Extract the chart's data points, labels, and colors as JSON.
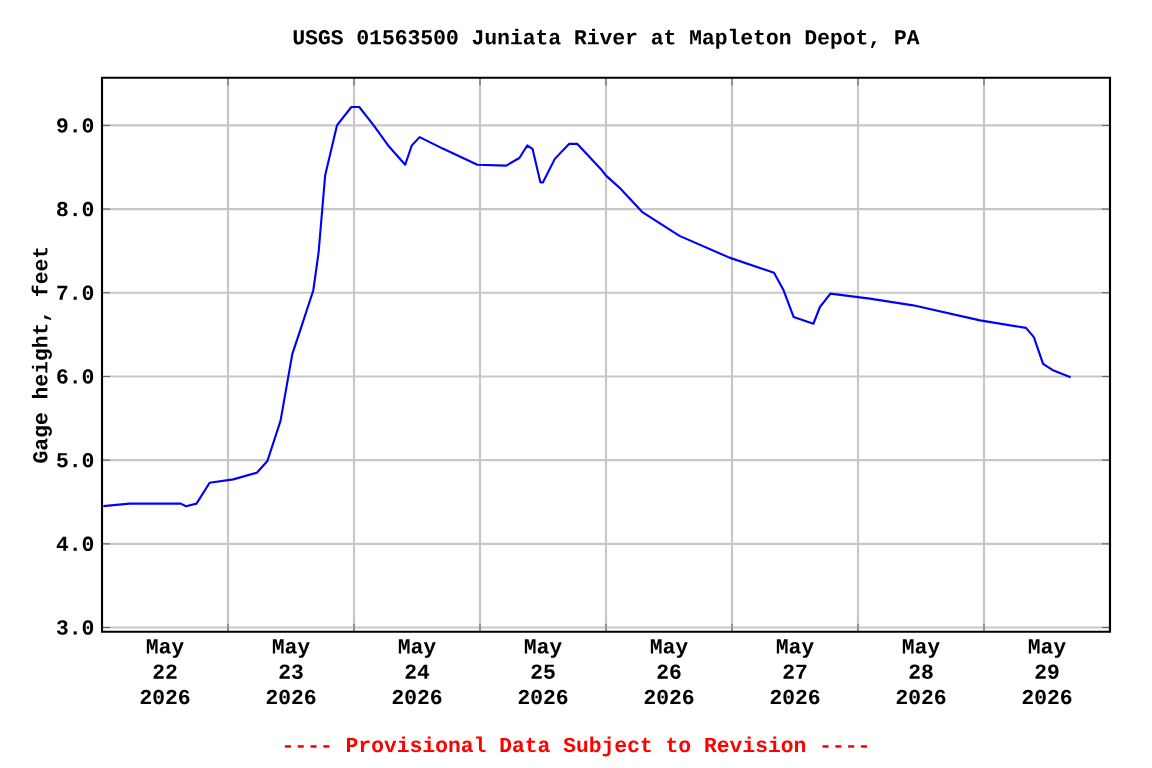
{
  "chart_data": {
    "type": "line",
    "title": "USGS 01563500 Juniata River at Mapleton Depot, PA",
    "ylabel": "Gage height, feet",
    "annotations": [
      "---- Provisional Data Subject to Revision ----"
    ],
    "x": [
      "2026-05-22T00:15",
      "2026-05-22T05:15",
      "2026-05-22T15:00",
      "2026-05-22T16:00",
      "2026-05-22T18:00",
      "2026-05-22T20:30",
      "2026-05-23T01:00",
      "2026-05-23T05:30",
      "2026-05-23T07:30",
      "2026-05-23T10:00",
      "2026-05-23T12:15",
      "2026-05-23T13:45",
      "2026-05-23T16:15",
      "2026-05-23T17:15",
      "2026-05-23T18:30",
      "2026-05-23T20:45",
      "2026-05-23T23:30",
      "2026-05-24T01:00",
      "2026-05-24T03:45",
      "2026-05-24T06:30",
      "2026-05-24T09:45",
      "2026-05-24T11:00",
      "2026-05-24T12:30",
      "2026-05-24T17:00",
      "2026-05-24T23:30",
      "2026-05-25T05:00",
      "2026-05-25T07:30",
      "2026-05-25T09:00",
      "2026-05-25T10:00",
      "2026-05-25T11:30",
      "2026-05-25T12:00",
      "2026-05-25T14:15",
      "2026-05-25T17:00",
      "2026-05-25T18:30",
      "2026-05-25T23:00",
      "2026-05-26T00:00",
      "2026-05-26T02:30",
      "2026-05-26T07:00",
      "2026-05-26T14:00",
      "2026-05-26T23:30",
      "2026-05-27T08:00",
      "2026-05-27T09:45",
      "2026-05-27T11:45",
      "2026-05-27T15:30",
      "2026-05-27T16:45",
      "2026-05-27T18:45",
      "2026-05-28T02:15",
      "2026-05-28T10:30",
      "2026-05-28T23:15",
      "2026-05-29T08:00",
      "2026-05-29T09:30",
      "2026-05-29T11:15",
      "2026-05-29T13:15",
      "2026-05-29T16:30"
    ],
    "series": [
      {
        "color": "#0000ff",
        "values": [
          4.45,
          4.48,
          4.48,
          4.45,
          4.48,
          4.73,
          4.77,
          4.85,
          4.99,
          5.47,
          6.27,
          6.55,
          7.03,
          7.48,
          8.4,
          9.0,
          9.22,
          9.22,
          9.0,
          8.76,
          8.53,
          8.76,
          8.86,
          8.72,
          8.53,
          8.52,
          8.61,
          8.76,
          8.72,
          8.32,
          8.32,
          8.6,
          8.78,
          8.78,
          8.48,
          8.4,
          8.26,
          7.96,
          7.68,
          7.42,
          7.24,
          7.04,
          6.71,
          6.63,
          6.83,
          6.99,
          6.93,
          6.85,
          6.67,
          6.58,
          6.47,
          6.15,
          6.07,
          5.99
        ]
      }
    ],
    "xlim": [
      "2026-05-22T00:00",
      "2026-05-30T00:00"
    ],
    "xticks": [
      {
        "value": "2026-05-22T12:00",
        "label": "May 22 2026"
      },
      {
        "value": "2026-05-23T00:00",
        "label": null
      },
      {
        "value": "2026-05-23T12:00",
        "label": "May 23 2026"
      },
      {
        "value": "2026-05-24T00:00",
        "label": null
      },
      {
        "value": "2026-05-24T12:00",
        "label": "May 24 2026"
      },
      {
        "value": "2026-05-25T00:00",
        "label": null
      },
      {
        "value": "2026-05-25T12:00",
        "label": "May 25 2026"
      },
      {
        "value": "2026-05-26T00:00",
        "label": null
      },
      {
        "value": "2026-05-26T12:00",
        "label": "May 26 2026"
      },
      {
        "value": "2026-05-27T00:00",
        "label": null
      },
      {
        "value": "2026-05-27T12:00",
        "label": "May 27 2026"
      },
      {
        "value": "2026-05-28T00:00",
        "label": null
      },
      {
        "value": "2026-05-28T12:00",
        "label": "May 28 2026"
      },
      {
        "value": "2026-05-29T00:00",
        "label": null
      },
      {
        "value": "2026-05-29T12:00",
        "label": "May 29 2026"
      }
    ],
    "ylim": [
      2.95,
      9.57
    ],
    "yticks": [
      {
        "value": 3,
        "label": "3.0"
      },
      {
        "value": 4,
        "label": "4.0"
      },
      {
        "value": 5,
        "label": "5.0"
      },
      {
        "value": 6,
        "label": "6.0"
      },
      {
        "value": 7,
        "label": "7.0"
      },
      {
        "value": 8,
        "label": "8.0"
      },
      {
        "value": 9,
        "label": "9.0"
      }
    ],
    "grid": true,
    "marker": "none",
    "line_style": "solid"
  }
}
